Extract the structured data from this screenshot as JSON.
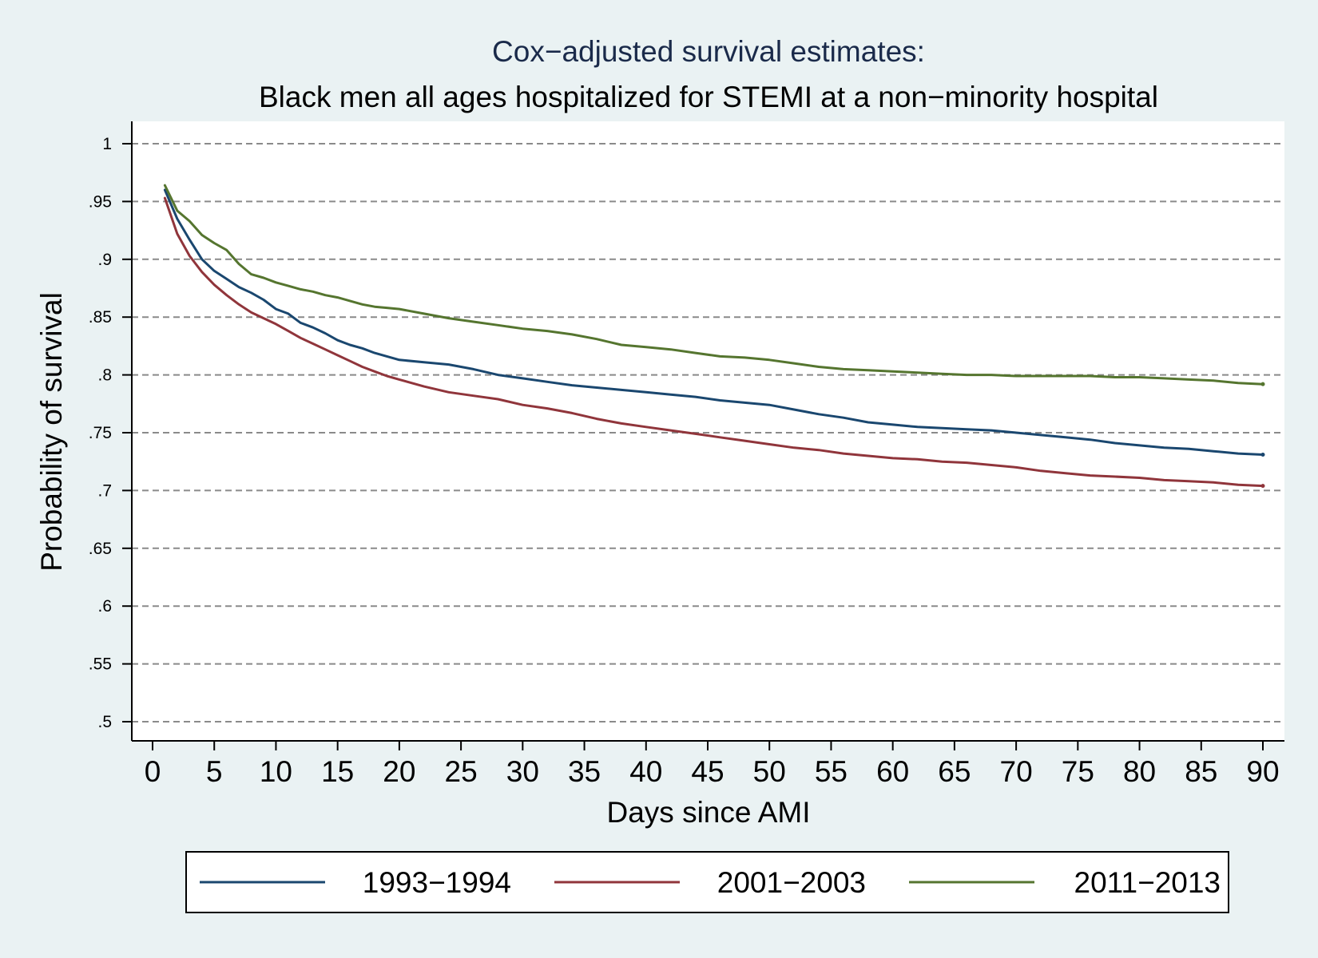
{
  "chart_data": {
    "type": "line",
    "title": "Cox−adjusted survival estimates:",
    "subtitle": "Black men all ages hospitalized for STEMI at a non−minority hospital",
    "xlabel": "Days since AMI",
    "ylabel": "Probability of survival",
    "xlim": [
      0,
      90
    ],
    "ylim": [
      0.5,
      1
    ],
    "x_ticks": [
      0,
      5,
      10,
      15,
      20,
      25,
      30,
      35,
      40,
      45,
      50,
      55,
      60,
      65,
      70,
      75,
      80,
      85,
      90
    ],
    "x_tick_labels": [
      "0",
      "5",
      "10",
      "15",
      "20",
      "25",
      "30",
      "35",
      "40",
      "45",
      "50",
      "55",
      "60",
      "65",
      "70",
      "75",
      "80",
      "85",
      "90"
    ],
    "y_ticks": [
      0.5,
      0.55,
      0.6,
      0.65,
      0.7,
      0.75,
      0.8,
      0.85,
      0.9,
      0.95,
      1
    ],
    "y_tick_labels": [
      ".5",
      ".55",
      ".6",
      ".65",
      ".7",
      ".75",
      ".8",
      ".85",
      ".9",
      ".95",
      "1"
    ],
    "grid": "horizontal dashed",
    "legend_position": "bottom",
    "series": [
      {
        "name": "1993−1994",
        "color": "#1a476f",
        "x": [
          1,
          2,
          3,
          4,
          5,
          6,
          7,
          8,
          9,
          10,
          11,
          12,
          13,
          14,
          15,
          16,
          17,
          18,
          19,
          20,
          22,
          24,
          26,
          28,
          30,
          32,
          34,
          36,
          38,
          40,
          42,
          44,
          46,
          48,
          50,
          52,
          54,
          56,
          58,
          60,
          62,
          64,
          66,
          68,
          70,
          72,
          74,
          76,
          78,
          80,
          82,
          84,
          86,
          88,
          90
        ],
        "y": [
          0.96,
          0.935,
          0.917,
          0.9,
          0.89,
          0.883,
          0.876,
          0.871,
          0.865,
          0.857,
          0.853,
          0.845,
          0.841,
          0.836,
          0.83,
          0.826,
          0.823,
          0.819,
          0.816,
          0.813,
          0.811,
          0.809,
          0.805,
          0.8,
          0.797,
          0.794,
          0.791,
          0.789,
          0.787,
          0.785,
          0.783,
          0.781,
          0.778,
          0.776,
          0.774,
          0.77,
          0.766,
          0.763,
          0.759,
          0.757,
          0.755,
          0.754,
          0.753,
          0.752,
          0.75,
          0.748,
          0.746,
          0.744,
          0.741,
          0.739,
          0.737,
          0.736,
          0.734,
          0.732,
          0.731
        ]
      },
      {
        "name": "2001−2003",
        "color": "#90353b",
        "x": [
          1,
          2,
          3,
          4,
          5,
          6,
          7,
          8,
          9,
          10,
          11,
          12,
          13,
          14,
          15,
          16,
          17,
          18,
          19,
          20,
          22,
          24,
          26,
          28,
          30,
          32,
          34,
          36,
          38,
          40,
          42,
          44,
          46,
          48,
          50,
          52,
          54,
          56,
          58,
          60,
          62,
          64,
          66,
          68,
          70,
          72,
          74,
          76,
          78,
          80,
          82,
          84,
          86,
          88,
          90
        ],
        "y": [
          0.953,
          0.922,
          0.903,
          0.889,
          0.878,
          0.869,
          0.861,
          0.854,
          0.849,
          0.844,
          0.838,
          0.832,
          0.827,
          0.822,
          0.817,
          0.812,
          0.807,
          0.803,
          0.799,
          0.796,
          0.79,
          0.785,
          0.782,
          0.779,
          0.774,
          0.771,
          0.767,
          0.762,
          0.758,
          0.755,
          0.752,
          0.749,
          0.746,
          0.743,
          0.74,
          0.737,
          0.735,
          0.732,
          0.73,
          0.728,
          0.727,
          0.725,
          0.724,
          0.722,
          0.72,
          0.717,
          0.715,
          0.713,
          0.712,
          0.711,
          0.709,
          0.708,
          0.707,
          0.705,
          0.704
        ]
      },
      {
        "name": "2011−2013",
        "color": "#55752f",
        "x": [
          1,
          2,
          3,
          4,
          5,
          6,
          7,
          8,
          9,
          10,
          11,
          12,
          13,
          14,
          15,
          16,
          17,
          18,
          19,
          20,
          22,
          24,
          26,
          28,
          30,
          32,
          34,
          36,
          38,
          40,
          42,
          44,
          46,
          48,
          50,
          52,
          54,
          56,
          58,
          60,
          62,
          64,
          66,
          68,
          70,
          72,
          74,
          76,
          78,
          80,
          82,
          84,
          86,
          88,
          90
        ],
        "y": [
          0.964,
          0.942,
          0.933,
          0.921,
          0.914,
          0.908,
          0.896,
          0.887,
          0.884,
          0.88,
          0.877,
          0.874,
          0.872,
          0.869,
          0.867,
          0.864,
          0.861,
          0.859,
          0.858,
          0.857,
          0.853,
          0.849,
          0.846,
          0.843,
          0.84,
          0.838,
          0.835,
          0.831,
          0.826,
          0.824,
          0.822,
          0.819,
          0.816,
          0.815,
          0.813,
          0.81,
          0.807,
          0.805,
          0.804,
          0.803,
          0.802,
          0.801,
          0.8,
          0.8,
          0.799,
          0.799,
          0.799,
          0.799,
          0.798,
          0.798,
          0.797,
          0.796,
          0.795,
          0.793,
          0.792
        ]
      }
    ]
  }
}
